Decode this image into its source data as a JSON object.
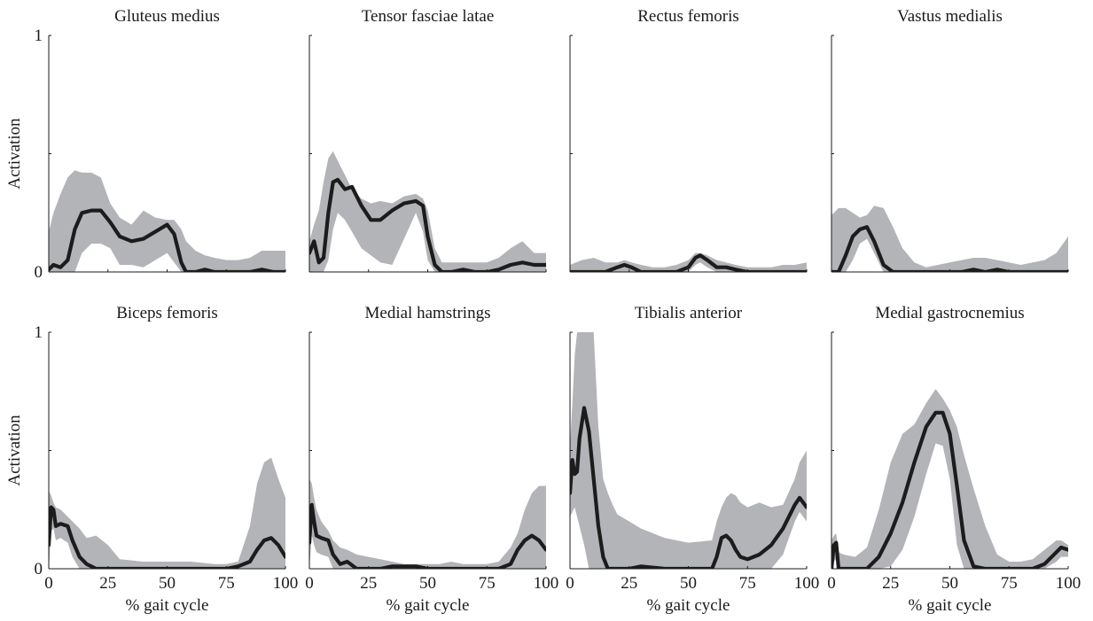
{
  "figure": {
    "ylabel": "Activation",
    "xlabel": "% gait cycle",
    "band_color": "#b3b4b8",
    "line_color": "#1c1c1c"
  },
  "chart_data": [
    {
      "type": "line",
      "title": "Gluteus medius",
      "xlim": [
        0,
        100
      ],
      "ylim": [
        0,
        1
      ],
      "yticks": [
        "0",
        "1"
      ],
      "xticks": [],
      "x": [
        0,
        2,
        5,
        8,
        11,
        14,
        18,
        22,
        26,
        30,
        35,
        40,
        45,
        50,
        53,
        56,
        58,
        62,
        66,
        70,
        75,
        80,
        85,
        90,
        95,
        100
      ],
      "mean": [
        0.01,
        0.03,
        0.02,
        0.05,
        0.18,
        0.25,
        0.26,
        0.26,
        0.21,
        0.15,
        0.13,
        0.14,
        0.17,
        0.2,
        0.16,
        0.04,
        0.0,
        0.0,
        0.01,
        0.0,
        0.0,
        0.0,
        0.0,
        0.01,
        0.0,
        0.0
      ],
      "upper": [
        0.17,
        0.25,
        0.33,
        0.4,
        0.43,
        0.42,
        0.42,
        0.4,
        0.29,
        0.23,
        0.2,
        0.26,
        0.23,
        0.22,
        0.22,
        0.18,
        0.13,
        0.09,
        0.07,
        0.06,
        0.05,
        0.05,
        0.06,
        0.09,
        0.09,
        0.09
      ],
      "lower": [
        0.0,
        0.0,
        0.0,
        0.0,
        0.0,
        0.08,
        0.12,
        0.12,
        0.1,
        0.03,
        0.03,
        0.02,
        0.05,
        0.08,
        0.04,
        0.0,
        0.0,
        0.0,
        0.0,
        0.0,
        0.0,
        0.0,
        0.0,
        0.0,
        0.0,
        0.0
      ]
    },
    {
      "type": "line",
      "title": "Tensor fasciae latae",
      "xlim": [
        0,
        100
      ],
      "ylim": [
        0,
        1
      ],
      "yticks": [],
      "xticks": [],
      "x": [
        0,
        2,
        4,
        6,
        8,
        10,
        12,
        15,
        18,
        22,
        26,
        30,
        35,
        40,
        45,
        48,
        50,
        53,
        56,
        60,
        65,
        70,
        75,
        80,
        85,
        90,
        95,
        100
      ],
      "mean": [
        0.08,
        0.13,
        0.04,
        0.06,
        0.25,
        0.38,
        0.39,
        0.35,
        0.36,
        0.28,
        0.22,
        0.22,
        0.26,
        0.29,
        0.3,
        0.28,
        0.15,
        0.03,
        0.0,
        0.0,
        0.01,
        0.0,
        0.0,
        0.01,
        0.03,
        0.04,
        0.03,
        0.03
      ],
      "upper": [
        0.13,
        0.2,
        0.26,
        0.38,
        0.48,
        0.51,
        0.47,
        0.41,
        0.35,
        0.31,
        0.29,
        0.3,
        0.29,
        0.32,
        0.33,
        0.31,
        0.26,
        0.1,
        0.04,
        0.04,
        0.04,
        0.04,
        0.04,
        0.06,
        0.1,
        0.13,
        0.08,
        0.08
      ],
      "lower": [
        0.0,
        0.0,
        0.0,
        0.0,
        0.05,
        0.18,
        0.25,
        0.22,
        0.17,
        0.1,
        0.07,
        0.04,
        0.03,
        0.14,
        0.25,
        0.17,
        0.05,
        0.0,
        0.0,
        0.0,
        0.0,
        0.0,
        0.0,
        0.0,
        0.0,
        0.0,
        0.0,
        0.0
      ]
    },
    {
      "type": "line",
      "title": "Rectus femoris",
      "xlim": [
        0,
        100
      ],
      "ylim": [
        0,
        1
      ],
      "yticks": [],
      "xticks": [],
      "x": [
        0,
        5,
        10,
        15,
        20,
        23,
        26,
        30,
        35,
        40,
        45,
        50,
        53,
        55,
        58,
        62,
        66,
        70,
        75,
        80,
        85,
        90,
        95,
        100
      ],
      "mean": [
        0.0,
        0.0,
        0.0,
        0.0,
        0.02,
        0.03,
        0.02,
        0.0,
        0.0,
        0.0,
        0.0,
        0.02,
        0.06,
        0.07,
        0.05,
        0.02,
        0.02,
        0.01,
        0.0,
        0.0,
        0.0,
        0.0,
        0.0,
        0.0
      ],
      "upper": [
        0.03,
        0.05,
        0.06,
        0.04,
        0.04,
        0.05,
        0.04,
        0.03,
        0.02,
        0.02,
        0.03,
        0.05,
        0.08,
        0.08,
        0.07,
        0.05,
        0.04,
        0.03,
        0.02,
        0.02,
        0.02,
        0.03,
        0.03,
        0.04
      ],
      "lower": [
        0.0,
        0.0,
        0.0,
        0.0,
        0.0,
        0.0,
        0.0,
        0.0,
        0.0,
        0.0,
        0.0,
        0.0,
        0.03,
        0.04,
        0.02,
        0.0,
        0.0,
        0.0,
        0.0,
        0.0,
        0.0,
        0.0,
        0.0,
        0.0
      ]
    },
    {
      "type": "line",
      "title": "Vastus medialis",
      "xlim": [
        0,
        100
      ],
      "ylim": [
        0,
        1
      ],
      "yticks": [],
      "xticks": [],
      "x": [
        0,
        3,
        6,
        9,
        12,
        15,
        18,
        22,
        26,
        30,
        35,
        40,
        45,
        50,
        55,
        60,
        65,
        70,
        75,
        80,
        85,
        90,
        95,
        100
      ],
      "mean": [
        0.0,
        0.0,
        0.07,
        0.15,
        0.18,
        0.19,
        0.13,
        0.03,
        0.0,
        0.0,
        0.0,
        0.0,
        0.0,
        0.0,
        0.0,
        0.01,
        0.0,
        0.01,
        0.0,
        0.0,
        0.0,
        0.0,
        0.0,
        0.0
      ],
      "upper": [
        0.24,
        0.27,
        0.27,
        0.25,
        0.23,
        0.24,
        0.28,
        0.27,
        0.19,
        0.1,
        0.04,
        0.02,
        0.03,
        0.04,
        0.05,
        0.06,
        0.06,
        0.05,
        0.04,
        0.03,
        0.04,
        0.05,
        0.08,
        0.15
      ],
      "lower": [
        0.0,
        0.0,
        0.0,
        0.05,
        0.12,
        0.14,
        0.08,
        0.0,
        0.0,
        0.0,
        0.0,
        0.0,
        0.0,
        0.0,
        0.0,
        0.0,
        0.0,
        0.0,
        0.0,
        0.0,
        0.0,
        0.0,
        0.0,
        0.0
      ]
    },
    {
      "type": "line",
      "title": "Biceps femoris",
      "xlim": [
        0,
        100
      ],
      "ylim": [
        0,
        1
      ],
      "yticks": [
        "0",
        "1"
      ],
      "xticks": [
        "0",
        "25",
        "50",
        "75",
        "100"
      ],
      "x": [
        0,
        1,
        2,
        3,
        5,
        8,
        10,
        13,
        16,
        20,
        25,
        30,
        40,
        50,
        60,
        70,
        75,
        80,
        85,
        88,
        91,
        94,
        97,
        100
      ],
      "mean": [
        0.1,
        0.26,
        0.25,
        0.18,
        0.19,
        0.18,
        0.12,
        0.05,
        0.02,
        0.0,
        0.0,
        0.0,
        0.0,
        0.0,
        0.0,
        0.0,
        0.0,
        0.01,
        0.03,
        0.08,
        0.12,
        0.13,
        0.1,
        0.05
      ],
      "upper": [
        0.33,
        0.31,
        0.28,
        0.26,
        0.25,
        0.22,
        0.2,
        0.17,
        0.13,
        0.14,
        0.1,
        0.04,
        0.03,
        0.03,
        0.03,
        0.02,
        0.02,
        0.03,
        0.18,
        0.36,
        0.45,
        0.47,
        0.38,
        0.3
      ],
      "lower": [
        0.0,
        0.16,
        0.17,
        0.12,
        0.13,
        0.11,
        0.05,
        0.0,
        0.0,
        0.0,
        0.0,
        0.0,
        0.0,
        0.0,
        0.0,
        0.0,
        0.0,
        0.0,
        0.0,
        0.0,
        0.0,
        0.0,
        0.0,
        0.0
      ]
    },
    {
      "type": "line",
      "title": "Medial hamstrings",
      "xlim": [
        0,
        100
      ],
      "ylim": [
        0,
        1
      ],
      "yticks": [],
      "xticks": [
        "0",
        "25",
        "50",
        "75",
        "100"
      ],
      "x": [
        0,
        1,
        2,
        3,
        5,
        8,
        10,
        13,
        16,
        20,
        25,
        30,
        35,
        40,
        45,
        50,
        55,
        60,
        65,
        70,
        75,
        80,
        85,
        88,
        91,
        94,
        97,
        100
      ],
      "mean": [
        0.11,
        0.27,
        0.2,
        0.14,
        0.13,
        0.12,
        0.06,
        0.02,
        0.03,
        0.0,
        0.0,
        0.0,
        0.01,
        0.01,
        0.01,
        0.0,
        0.0,
        0.0,
        0.0,
        0.0,
        0.0,
        0.0,
        0.02,
        0.08,
        0.12,
        0.14,
        0.12,
        0.08
      ],
      "upper": [
        0.38,
        0.36,
        0.3,
        0.25,
        0.2,
        0.16,
        0.12,
        0.09,
        0.08,
        0.06,
        0.05,
        0.04,
        0.03,
        0.02,
        0.02,
        0.02,
        0.02,
        0.03,
        0.02,
        0.02,
        0.02,
        0.03,
        0.09,
        0.15,
        0.25,
        0.32,
        0.35,
        0.35
      ],
      "lower": [
        0.0,
        0.14,
        0.1,
        0.07,
        0.06,
        0.05,
        0.0,
        0.0,
        0.0,
        0.0,
        0.0,
        0.0,
        0.0,
        0.0,
        0.0,
        0.0,
        0.0,
        0.0,
        0.0,
        0.0,
        0.0,
        0.0,
        0.0,
        0.0,
        0.0,
        0.0,
        0.0,
        0.0
      ]
    },
    {
      "type": "line",
      "title": "Tibialis anterior",
      "xlim": [
        0,
        100
      ],
      "ylim": [
        0,
        1
      ],
      "yticks": [],
      "xticks": [
        "0",
        "25",
        "50",
        "75",
        "100"
      ],
      "x": [
        0,
        1,
        2,
        3,
        4,
        6,
        8,
        10,
        12,
        14,
        16,
        18,
        20,
        25,
        30,
        40,
        50,
        60,
        62,
        64,
        66,
        68,
        70,
        72,
        75,
        80,
        85,
        90,
        95,
        97,
        100
      ],
      "mean": [
        0.32,
        0.46,
        0.4,
        0.41,
        0.55,
        0.68,
        0.58,
        0.38,
        0.18,
        0.05,
        0.0,
        0.0,
        0.0,
        0.0,
        0.01,
        0.0,
        0.0,
        0.0,
        0.05,
        0.13,
        0.14,
        0.12,
        0.08,
        0.05,
        0.04,
        0.06,
        0.1,
        0.17,
        0.27,
        0.3,
        0.26
      ],
      "upper": [
        0.52,
        0.7,
        0.9,
        1.0,
        1.0,
        1.0,
        1.0,
        1.0,
        0.6,
        0.38,
        0.32,
        0.27,
        0.23,
        0.2,
        0.17,
        0.13,
        0.11,
        0.12,
        0.2,
        0.26,
        0.3,
        0.32,
        0.31,
        0.28,
        0.26,
        0.28,
        0.26,
        0.27,
        0.38,
        0.45,
        0.5
      ],
      "lower": [
        0.22,
        0.24,
        0.26,
        0.22,
        0.18,
        0.1,
        0.0,
        0.0,
        0.0,
        0.0,
        0.0,
        0.0,
        0.0,
        0.0,
        0.0,
        0.0,
        0.0,
        0.0,
        0.0,
        0.0,
        0.0,
        0.0,
        0.0,
        0.0,
        0.0,
        0.0,
        0.0,
        0.06,
        0.2,
        0.24,
        0.2
      ]
    },
    {
      "type": "line",
      "title": "Medial gastrocnemius",
      "xlim": [
        0,
        100
      ],
      "ylim": [
        0,
        1
      ],
      "yticks": [],
      "xticks": [
        "0",
        "25",
        "50",
        "75",
        "100"
      ],
      "x": [
        0,
        1,
        2,
        3,
        5,
        10,
        15,
        20,
        25,
        30,
        35,
        40,
        44,
        47,
        50,
        53,
        56,
        60,
        65,
        70,
        75,
        80,
        85,
        90,
        95,
        97,
        100
      ],
      "mean": [
        0.0,
        0.1,
        0.11,
        0.0,
        0.0,
        0.0,
        0.0,
        0.05,
        0.15,
        0.28,
        0.45,
        0.6,
        0.66,
        0.66,
        0.57,
        0.35,
        0.12,
        0.01,
        0.0,
        0.0,
        0.0,
        0.0,
        0.0,
        0.02,
        0.07,
        0.09,
        0.08
      ],
      "upper": [
        0.12,
        0.14,
        0.15,
        0.07,
        0.06,
        0.05,
        0.09,
        0.25,
        0.45,
        0.57,
        0.61,
        0.7,
        0.76,
        0.72,
        0.67,
        0.6,
        0.48,
        0.34,
        0.18,
        0.06,
        0.03,
        0.03,
        0.04,
        0.08,
        0.12,
        0.12,
        0.1
      ],
      "lower": [
        0.0,
        0.03,
        0.04,
        0.0,
        0.0,
        0.0,
        0.0,
        0.0,
        0.01,
        0.08,
        0.22,
        0.4,
        0.53,
        0.52,
        0.38,
        0.1,
        0.0,
        0.0,
        0.0,
        0.0,
        0.0,
        0.0,
        0.0,
        0.0,
        0.03,
        0.05,
        0.05
      ]
    }
  ]
}
